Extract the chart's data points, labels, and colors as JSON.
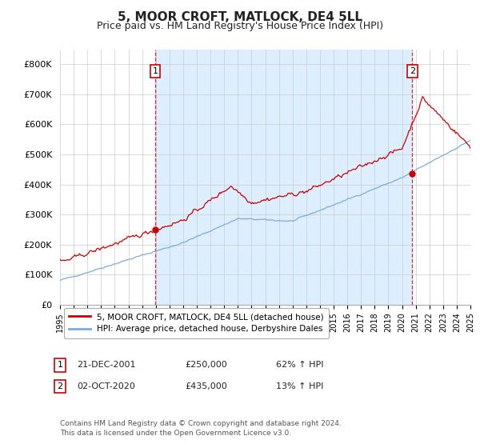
{
  "title": "5, MOOR CROFT, MATLOCK, DE4 5LL",
  "subtitle": "Price paid vs. HM Land Registry's House Price Index (HPI)",
  "title_fontsize": 11,
  "subtitle_fontsize": 9,
  "ylim": [
    0,
    850000
  ],
  "yticks": [
    0,
    100000,
    200000,
    300000,
    400000,
    500000,
    600000,
    700000,
    800000
  ],
  "ytick_labels": [
    "£0",
    "£100K",
    "£200K",
    "£300K",
    "£400K",
    "£500K",
    "£600K",
    "£700K",
    "£800K"
  ],
  "xtick_years": [
    1995,
    1996,
    1997,
    1998,
    1999,
    2000,
    2001,
    2002,
    2003,
    2004,
    2005,
    2006,
    2007,
    2008,
    2009,
    2010,
    2011,
    2012,
    2013,
    2014,
    2015,
    2016,
    2017,
    2018,
    2019,
    2020,
    2021,
    2022,
    2023,
    2024,
    2025
  ],
  "house_color": "#cc0000",
  "hpi_color": "#7aaddb",
  "shade_color": "#ddeeff",
  "vline_color": "#cc0000",
  "marker1_date": 2001.97,
  "marker1_price": 250000,
  "marker2_date": 2020.75,
  "marker2_price": 435000,
  "legend_house": "5, MOOR CROFT, MATLOCK, DE4 5LL (detached house)",
  "legend_hpi": "HPI: Average price, detached house, Derbyshire Dales",
  "footnote": "Contains HM Land Registry data © Crown copyright and database right 2024.\nThis data is licensed under the Open Government Licence v3.0.",
  "table_rows": [
    {
      "num": "1",
      "date": "21-DEC-2001",
      "price": "£250,000",
      "change": "62% ↑ HPI"
    },
    {
      "num": "2",
      "date": "02-OCT-2020",
      "price": "£435,000",
      "change": "13% ↑ HPI"
    }
  ],
  "background_color": "#ffffff",
  "grid_color": "#cccccc"
}
